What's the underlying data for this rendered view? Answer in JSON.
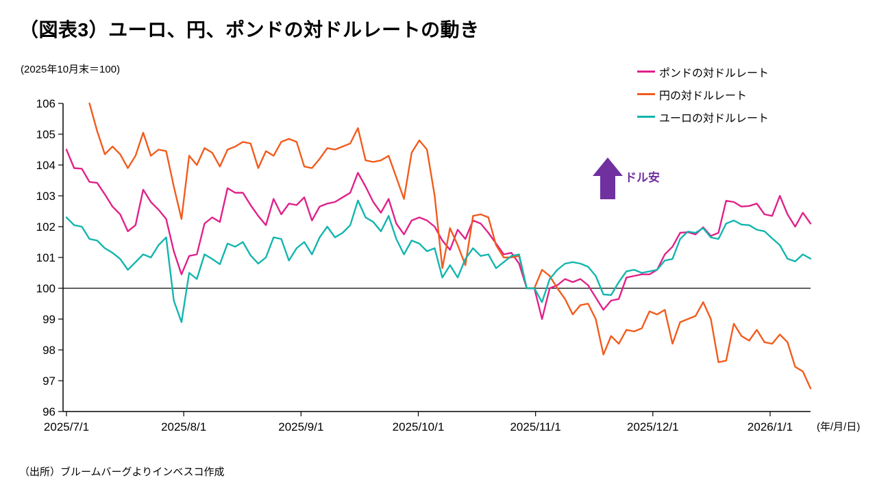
{
  "title": "（図表3）ユーロ、円、ポンドの対ドルレートの動き",
  "subtitle": "(2025年10月末＝100)",
  "source": "（出所）ブルームバーグよりインベスコ作成",
  "x_axis_unit": "(年/月/日)",
  "annotation": {
    "label": "ドル安",
    "color": "#7030A0"
  },
  "chart_data": {
    "type": "line",
    "title": "（図表3）ユーロ、円、ポンドの対ドルレートの動き",
    "index_note": "2025年10月末＝100",
    "x_start": "2025/7/1",
    "x_end": "2026/1/11",
    "point_interval_days": 2,
    "x_ticks": [
      "2025/7/1",
      "2025/8/1",
      "2025/9/1",
      "2025/10/1",
      "2025/11/1",
      "2025/12/1",
      "2026/1/1"
    ],
    "y_ticks": [
      96,
      97,
      98,
      99,
      100,
      101,
      102,
      103,
      104,
      105,
      106
    ],
    "ylim": [
      96,
      106
    ],
    "baseline": 100,
    "grid": false,
    "legend_position": "top-right",
    "axis_color": "#000000",
    "series": [
      {
        "name": "ポンドの対ドルレート",
        "color": "#E0218A",
        "values": [
          104.5,
          103.9,
          103.88,
          103.45,
          103.42,
          103.05,
          102.65,
          102.4,
          101.85,
          102.05,
          103.2,
          102.8,
          102.55,
          102.25,
          101.2,
          100.45,
          101.05,
          101.1,
          102.1,
          102.3,
          102.15,
          103.25,
          103.1,
          103.1,
          102.7,
          102.35,
          102.05,
          102.9,
          102.4,
          102.75,
          102.7,
          102.95,
          102.2,
          102.65,
          102.75,
          102.8,
          102.95,
          103.1,
          103.75,
          103.3,
          102.8,
          102.45,
          102.9,
          102.1,
          101.75,
          102.2,
          102.3,
          102.2,
          102.0,
          101.55,
          101.25,
          101.9,
          101.6,
          102.2,
          102.1,
          101.8,
          101.45,
          101.1,
          101.15,
          100.8,
          100.0,
          100.0,
          99.0,
          100.0,
          100.1,
          100.3,
          100.2,
          100.3,
          100.1,
          99.7,
          99.3,
          99.6,
          99.65,
          100.35,
          100.4,
          100.45,
          100.45,
          100.6,
          101.1,
          101.35,
          101.8,
          101.82,
          101.75,
          101.98,
          101.7,
          101.8,
          102.84,
          102.8,
          102.65,
          102.67,
          102.75,
          102.4,
          102.35,
          103.0,
          102.4,
          102.0,
          102.45,
          102.1
        ]
      },
      {
        "name": "円の対ドルレート",
        "color": "#F25B1C",
        "values": [
          null,
          null,
          null,
          106.0,
          105.1,
          104.35,
          104.6,
          104.35,
          103.9,
          104.3,
          105.05,
          104.3,
          104.5,
          104.45,
          103.3,
          102.25,
          104.3,
          104.0,
          104.55,
          104.4,
          103.95,
          104.5,
          104.6,
          104.75,
          104.7,
          103.9,
          104.45,
          104.3,
          104.75,
          104.85,
          104.75,
          103.95,
          103.9,
          104.2,
          104.55,
          104.5,
          104.6,
          104.7,
          105.2,
          104.15,
          104.1,
          104.15,
          104.3,
          103.6,
          102.9,
          104.4,
          104.8,
          104.5,
          103.0,
          100.65,
          101.95,
          101.4,
          100.75,
          102.35,
          102.4,
          102.3,
          101.4,
          101.0,
          101.0,
          101.05,
          100.0,
          100.0,
          100.6,
          100.4,
          100.0,
          99.65,
          99.15,
          99.45,
          99.5,
          99.0,
          97.85,
          98.45,
          98.2,
          98.65,
          98.6,
          98.7,
          99.25,
          99.15,
          99.3,
          98.2,
          98.9,
          99.0,
          99.1,
          99.55,
          99.0,
          97.6,
          97.65,
          98.85,
          98.45,
          98.3,
          98.65,
          98.25,
          98.2,
          98.5,
          98.25,
          97.45,
          97.3,
          96.75
        ]
      },
      {
        "name": "ユーロの対ドルレート",
        "color": "#12B5AE",
        "values": [
          102.3,
          102.05,
          102.0,
          101.6,
          101.55,
          101.3,
          101.15,
          100.95,
          100.6,
          100.85,
          101.1,
          101.0,
          101.4,
          101.65,
          99.6,
          98.9,
          100.5,
          100.3,
          101.1,
          100.95,
          100.78,
          101.45,
          101.35,
          101.5,
          101.07,
          100.8,
          101.0,
          101.65,
          101.6,
          100.9,
          101.3,
          101.5,
          101.1,
          101.65,
          102.0,
          101.65,
          101.8,
          102.05,
          102.85,
          102.3,
          102.15,
          101.85,
          102.35,
          101.6,
          101.1,
          101.55,
          101.45,
          101.2,
          101.3,
          100.35,
          100.75,
          100.35,
          100.95,
          101.3,
          101.05,
          101.1,
          100.65,
          100.85,
          101.05,
          101.1,
          100.0,
          100.0,
          99.55,
          100.3,
          100.6,
          100.8,
          100.85,
          100.8,
          100.7,
          100.4,
          99.8,
          99.78,
          100.2,
          100.55,
          100.6,
          100.5,
          100.55,
          100.6,
          100.9,
          100.95,
          101.6,
          101.84,
          101.8,
          101.95,
          101.65,
          101.6,
          102.1,
          102.2,
          102.07,
          102.05,
          101.9,
          101.85,
          101.62,
          101.4,
          100.96,
          100.87,
          101.1,
          100.96
        ]
      }
    ]
  }
}
